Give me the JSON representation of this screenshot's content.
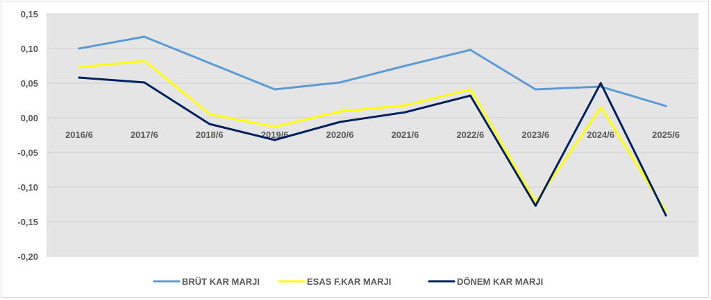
{
  "chart_data": {
    "type": "line",
    "categories": [
      "2016/6",
      "2017/6",
      "2018/6",
      "2019/6",
      "2020/6",
      "2021/6",
      "2022/6",
      "2023/6",
      "2024/6",
      "2025/6"
    ],
    "series": [
      {
        "name": "BRÜT KAR MARJI",
        "color": "#5b9bd5",
        "values": [
          0.1,
          0.117,
          0.079,
          0.041,
          0.051,
          0.075,
          0.098,
          0.041,
          0.045,
          0.017
        ]
      },
      {
        "name": "ESAS F.KAR MARJI",
        "color": "#ffff00",
        "values": [
          0.073,
          0.082,
          0.005,
          -0.013,
          0.009,
          0.018,
          0.041,
          -0.122,
          0.015,
          -0.135
        ]
      },
      {
        "name": "DÖNEM KAR MARJI",
        "color": "#002060",
        "values": [
          0.058,
          0.051,
          -0.009,
          -0.032,
          -0.006,
          0.008,
          0.032,
          -0.127,
          0.05,
          -0.141
        ]
      }
    ],
    "yticks": [
      "0,15",
      "0,10",
      "0,05",
      "0,00",
      "-0,05",
      "-0,10",
      "-0,15",
      "-0,20"
    ],
    "ylim": [
      -0.2,
      0.15
    ],
    "grid": true,
    "legend_position": "bottom",
    "plot_background": "#e5e5e5"
  }
}
